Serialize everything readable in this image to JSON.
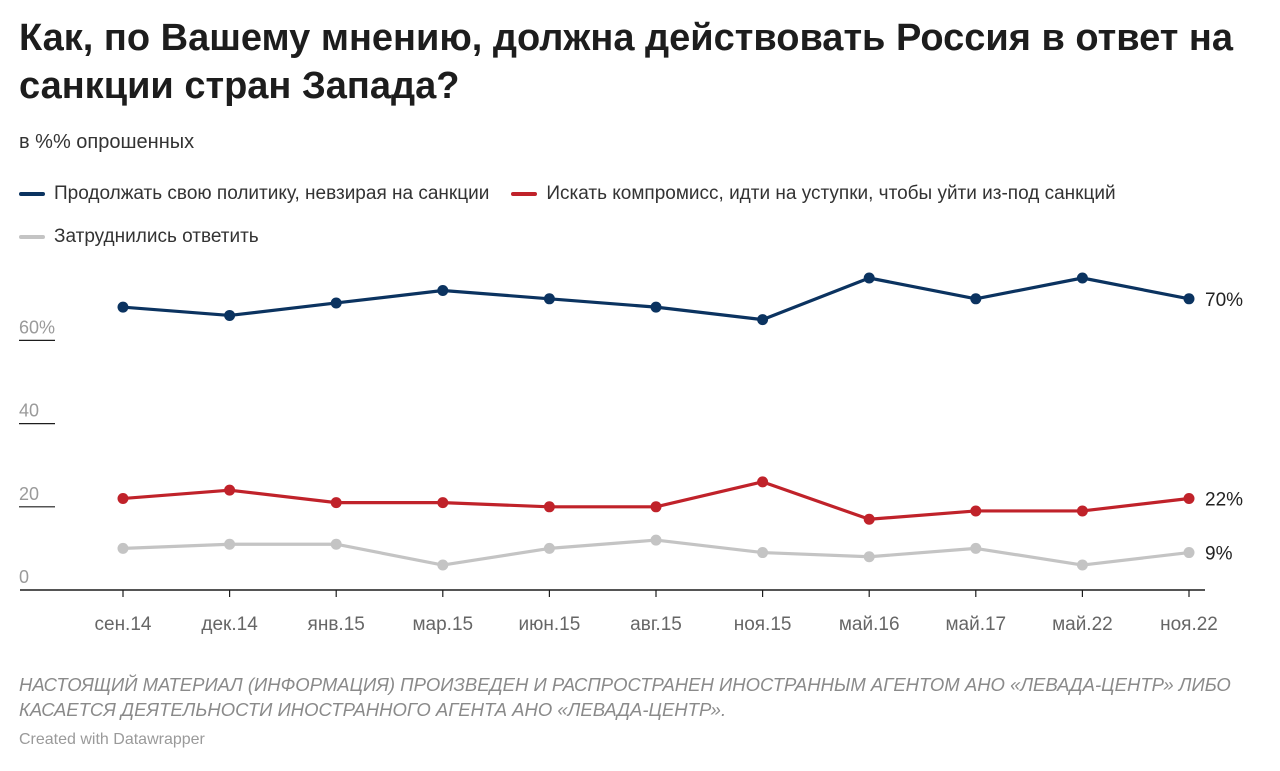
{
  "title": "Как, по Вашему мнению, должна действовать Россия в ответ на санкции стран Запада?",
  "subtitle": "в %% опрошенных",
  "note": "НАСТОЯЩИЙ МАТЕРИАЛ (ИНФОРМАЦИЯ) ПРОИЗВЕДЕН И РАСПРОСТРАНЕН ИНОСТРАННЫМ АГЕНТОМ АНО «ЛЕВАДА-ЦЕНТР» ЛИБО КАСАЕТСЯ ДЕЯТЕЛЬНОСТИ ИНОСТРАННОГО АГЕНТА АНО «ЛЕВАДА-ЦЕНТР».",
  "credit": "Created with Datawrapper",
  "chart_data": {
    "type": "line",
    "title": "Как, по Вашему мнению, должна действовать Россия в ответ на санкции стран Запада?",
    "subtitle": "в %% опрошенных",
    "categories": [
      "сен.14",
      "дек.14",
      "янв.15",
      "мар.15",
      "июн.15",
      "авг.15",
      "ноя.15",
      "май.16",
      "май.17",
      "май.22",
      "ноя.22"
    ],
    "ylim": [
      0,
      75
    ],
    "yticks": [
      0,
      20,
      40,
      60
    ],
    "ytick_labels": [
      "0",
      "20",
      "40",
      "60%"
    ],
    "grid": false,
    "legend_position": "top",
    "series": [
      {
        "name": "Продолжать свою политику, невзирая на санкции",
        "color": "#0b3360",
        "values": [
          68,
          66,
          69,
          72,
          70,
          68,
          65,
          75,
          70,
          75,
          70
        ],
        "end_label": "70%"
      },
      {
        "name": "Искать компромисс, идти на уступки, чтобы уйти из-под санкций",
        "color": "#c0222a",
        "values": [
          22,
          24,
          21,
          21,
          20,
          20,
          26,
          17,
          19,
          19,
          22
        ],
        "end_label": "22%"
      },
      {
        "name": "Затруднились ответить",
        "color": "#c4c4c4",
        "values": [
          10,
          11,
          11,
          6,
          10,
          12,
          9,
          8,
          10,
          6,
          9
        ],
        "end_label": "9%"
      }
    ]
  }
}
